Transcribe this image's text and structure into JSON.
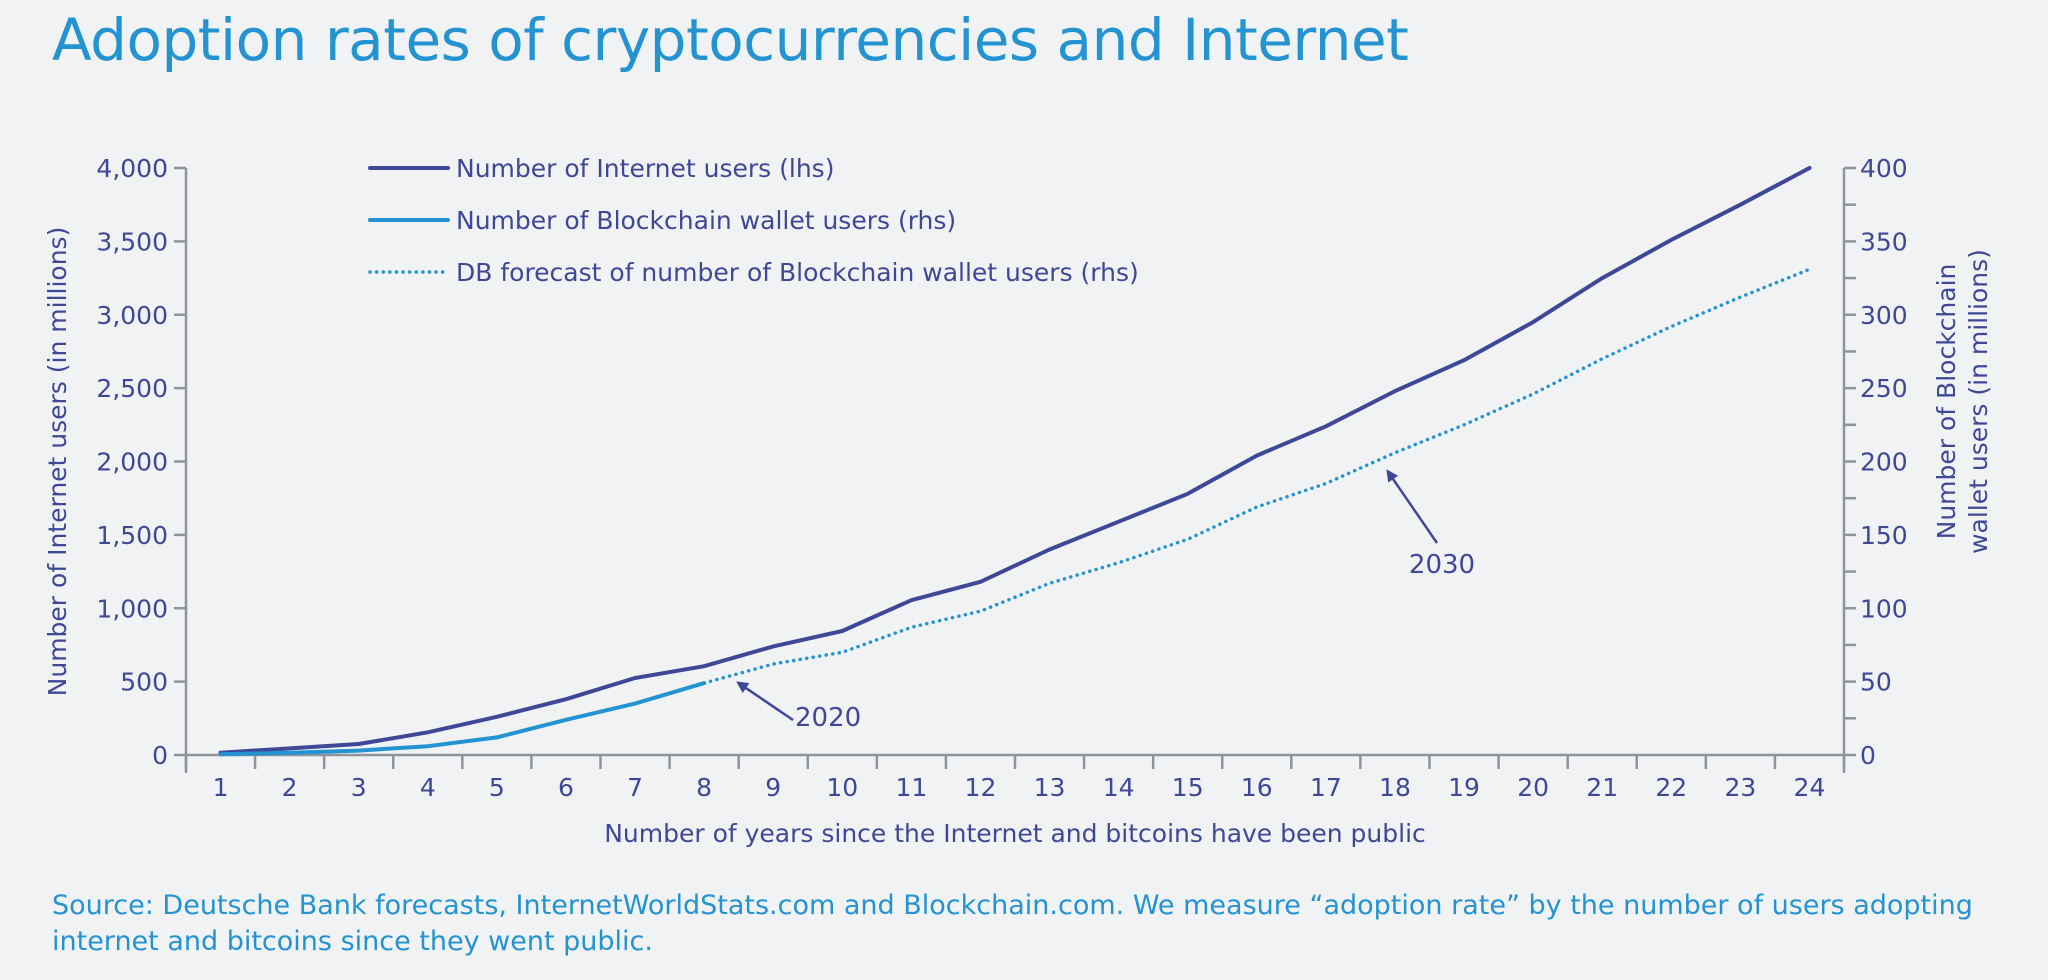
{
  "colors": {
    "background": "#f0f2f4",
    "title": "#2493d1",
    "internet_line": "#3f4797",
    "blockchain_line": "#2493d1",
    "axis": "#8f949c",
    "text": "#3f4797"
  },
  "title": "Adoption rates of cryptocurrencies and Internet",
  "source": "Source: Deutsche Bank forecasts, InternetWorldStats.com and Blockchain.com. We measure “adoption rate” by the number of users adopting internet and bitcoins since they went public.",
  "chart_data": {
    "type": "line",
    "xlabel": "Number of years since the Internet and bitcoins have been public",
    "ylabel_left": "Number of Internet users (in millions)",
    "ylabel_right": "Number of Blockchain wallet users (in millions)",
    "ylabel_right_lines": [
      "Number of Blockchain",
      "wallet users (in millions)"
    ],
    "ylim_left": [
      0,
      4000
    ],
    "ylim_right": [
      0,
      400
    ],
    "y_ticks_left": [
      0,
      500,
      1000,
      1500,
      2000,
      2500,
      3000,
      3500,
      4000
    ],
    "y_tick_labels_left": [
      "0",
      "500",
      "1,000",
      "1,500",
      "2,000",
      "2,500",
      "3,000",
      "3,500",
      "4,000"
    ],
    "y_ticks_right": [
      0,
      50,
      100,
      150,
      200,
      250,
      300,
      350,
      400
    ],
    "y_tick_labels_right": [
      "0",
      "50",
      "100",
      "150",
      "200",
      "250",
      "300",
      "350",
      "400"
    ],
    "x": [
      1,
      2,
      3,
      4,
      5,
      6,
      7,
      8,
      9,
      10,
      11,
      12,
      13,
      14,
      15,
      16,
      17,
      18,
      19,
      20,
      21,
      22,
      23,
      24
    ],
    "x_tick_labels": [
      "1",
      "2",
      "3",
      "4",
      "5",
      "6",
      "7",
      "8",
      "9",
      "10",
      "11",
      "12",
      "13",
      "14",
      "15",
      "16",
      "17",
      "18",
      "19",
      "20",
      "21",
      "22",
      "23",
      "24"
    ],
    "grid": false,
    "legend_position": "top-left",
    "series": [
      {
        "name": "Number of Internet users (lhs)",
        "axis": "left",
        "style": "solid",
        "x": [
          1,
          2,
          3,
          4,
          5,
          6,
          7,
          8,
          9,
          10,
          11,
          12,
          13,
          14,
          15,
          16,
          17,
          18,
          19,
          20,
          21,
          22,
          23,
          24
        ],
        "values": [
          16,
          45,
          75,
          155,
          260,
          380,
          525,
          605,
          740,
          845,
          1055,
          1180,
          1400,
          1590,
          1780,
          2040,
          2240,
          2480,
          2690,
          2950,
          3250,
          3510,
          3750,
          4000
        ]
      },
      {
        "name": "Number of Blockchain wallet users (rhs)",
        "axis": "right",
        "style": "solid",
        "x": [
          1,
          2,
          3,
          4,
          5,
          6,
          7,
          8
        ],
        "values": [
          0.5,
          1.5,
          3,
          6,
          12,
          24,
          35,
          49
        ]
      },
      {
        "name": "DB forecast of number of Blockchain wallet users (rhs)",
        "axis": "right",
        "style": "dotted",
        "x": [
          8,
          9,
          10,
          11,
          12,
          13,
          14,
          15,
          16,
          17,
          18,
          19,
          20,
          21,
          22,
          23,
          24
        ],
        "values": [
          49,
          62,
          70,
          87,
          98,
          117,
          131,
          147,
          169,
          185,
          206,
          225,
          246,
          270,
          292,
          312,
          331
        ]
      }
    ],
    "annotations": [
      {
        "text": "2020",
        "point": {
          "x": 8.5,
          "y_left": 490
        }
      },
      {
        "text": "2030",
        "point": {
          "x": 17.9,
          "y_left": 1930
        }
      }
    ]
  }
}
